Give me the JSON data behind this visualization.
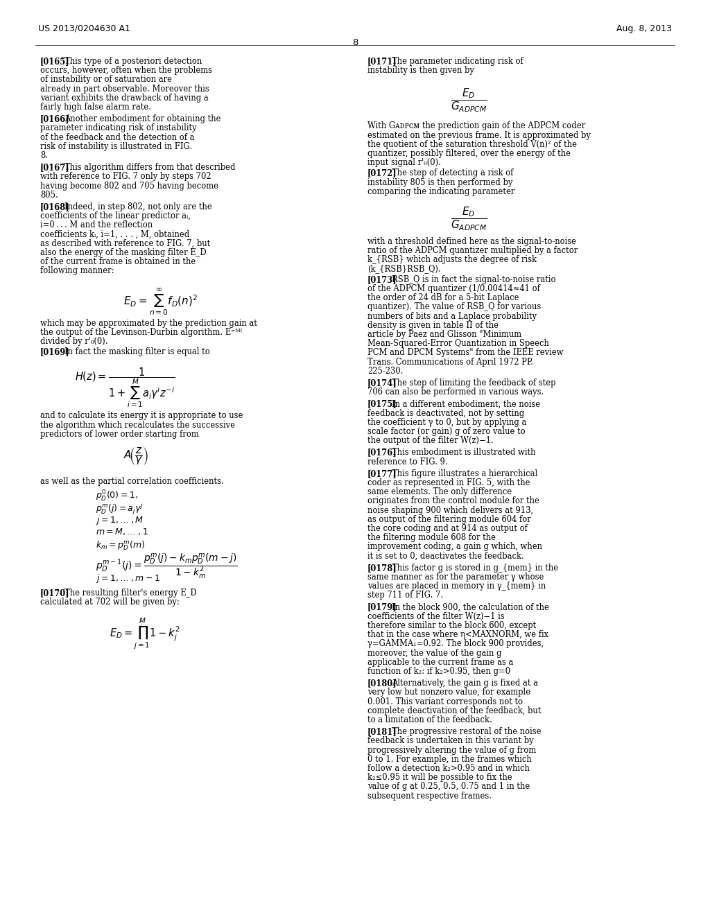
{
  "bg_color": "#ffffff",
  "header_left": "US 2013/0204630 A1",
  "header_right": "Aug. 8, 2013",
  "page_number": "8",
  "left_column": {
    "paragraphs": [
      {
        "tag": "[0165]",
        "text": "This type of a posteriori detection occurs, however, often when the problems of instability or of saturation are already in part observable. Moreover this variant exhibits the drawback of having a fairly high false alarm rate."
      },
      {
        "tag": "[0166]",
        "text": "Another embodiment for obtaining the parameter indicating risk of instability of the feedback and the detection of a risk of instability is illustrated in FIG. 8."
      },
      {
        "tag": "[0167]",
        "text": "This algorithm differs from that described with reference to FIG. 7 only by steps 702 having become 802 and 705 having become 805."
      },
      {
        "tag": "[0168]",
        "text": "Indeed, in step 802, not only are the coefficients of the linear predictor aᵢ, i=0 . . . M and the reflection coefficients kᵢ, i=1, . . . , M, obtained as described with reference to FIG. 7, but also the energy of the masking filter E_D of the current frame is obtained in the following manner:"
      },
      {
        "type": "formula",
        "id": "ED_sum",
        "latex": "$E_D = \\sum_{n=0}^{\\infty} f_D(n)^2$"
      },
      {
        "text": "which may be approximated by the prediction gain at the output of the Levinson-Durbin algorithm. E^{[M]} divided by r'₀(0)."
      },
      {
        "tag": "[0169]",
        "text": "In fact the masking filter is equal to"
      },
      {
        "type": "formula",
        "id": "Hz",
        "latex": "$H(z) = \\dfrac{1}{1 + \\sum_{i=1}^{M} a_i \\gamma^i z^{-i}}$"
      },
      {
        "text": "and to calculate its energy it is appropriate to use the algorithm which recalculates the successive predictors of lower order starting from"
      },
      {
        "type": "formula",
        "id": "Az",
        "latex": "$A\\left(\\dfrac{z}{\\gamma}\\right)$"
      },
      {
        "text": "as well as the partial correlation coefficients."
      },
      {
        "type": "equations_block",
        "lines": [
          "$p_D^0(0) = 1,$",
          "$p_D^m(j) = a_j \\gamma^j$",
          "$j = 1, \\ldots\\;, M$",
          "$m = M, \\ldots\\;, 1$",
          "$k_m = p_D^m(m)$",
          "$p_D^{m-1}(j) = \\dfrac{p_D^m(j) - k_m p_D^m(m-j)}{1 - k_m^2}$",
          "$j = 1, \\ldots\\;, m-1$"
        ]
      },
      {
        "tag": "[0170]",
        "text": "The resulting filter's energy E_D calculated at 702 will be given by:"
      },
      {
        "type": "formula",
        "id": "ED_prod",
        "latex": "$E_D = \\prod_{j=1}^{M} 1 - k_j^2$"
      }
    ]
  },
  "right_column": {
    "paragraphs": [
      {
        "tag": "[0171]",
        "text": "The parameter indicating risk of instability is then given by"
      },
      {
        "type": "formula",
        "id": "frac1",
        "latex": "$\\dfrac{E_D}{G_{ADPCM}}$"
      },
      {
        "text": "With G_{ADPCM} the prediction gain of the ADPCM coder estimated on the previous frame. It is approximated by the quotient of the saturation threshold V(n)^2 of the quantizer, possibly filtered, over the energy of the input signal r'₀(0)."
      },
      {
        "tag": "[0172]",
        "text": "The step of detecting a risk of instability 805 is then performed by comparing the indicating parameter"
      },
      {
        "type": "formula",
        "id": "frac2",
        "latex": "$\\dfrac{E_D}{G_{ADPCM}}$"
      },
      {
        "text": "with a threshold defined here as the signal-to-noise ratio of the ADPCM quantizer multiplied by a factor k_{RSB} which adjusts the degree of risk (k_{RSB}RSB_Q)."
      },
      {
        "tag": "[0173]",
        "text": "RSB_Q is in fact the signal-to-noise ratio of the ADPCM quantizer (1/0.00414≈41 of the order of 24 dB for a 5-bit Laplace quantizer). The value of RSB_Q for various numbers of bits and a Laplace probability density is given in table II of the article by Paez and Glisson \"Minimum Mean-Squared-Error Quantization in Speech PCM and DPCM Systems\" from the IEEE review Trans. Communications of April 1972 PP. 225-230."
      },
      {
        "tag": "[0174]",
        "text": "The step of limiting the feedback of step 706 can also be performed in various ways."
      },
      {
        "tag": "[0175]",
        "text": "In a different embodiment, the noise feedback is deactivated, not by setting the coefficient γ to 0, but by applying a scale factor (or gain) g of zero value to the output of the filter W(z)−1."
      },
      {
        "tag": "[0176]",
        "text": "This embodiment is illustrated with reference to FIG. 9."
      },
      {
        "tag": "[0177]",
        "text": "This figure illustrates a hierarchical coder as represented in FIG. 5, with the same elements. The only difference originates from the control module for the noise shaping 900 which delivers at 913, as output of the filtering module 604 for the core coding and at 914 as output of the filtering module 608 for the improvement coding, a gain g which, when it is set to 0, deactivates the feedback."
      },
      {
        "tag": "[0178]",
        "text": "This factor g is stored in g_{mem} in the same manner as for the parameter γ whose values are placed in memory in γ_{mem} in step 711 of FIG. 7."
      },
      {
        "tag": "[0179]",
        "text": "In the block 900, the calculation of the coefficients of the filter W(z)−1 is therefore similar to the block 600, except that in the case where η<MAXNORM, we fix γ=GAMMA_1=0.92. The block 900 provides, moreover, the value of the gain g applicable to the current frame as a function of k_2: if k_2>0.95, then g=0"
      },
      {
        "tag": "[0180]",
        "text": "Alternatively, the gain g is fixed at a very low but nonzero value, for example 0.001. This variant corresponds not to complete deactivation of the feedback, but to a limitation of the feedback."
      },
      {
        "tag": "[0181]",
        "text": "The progressive restoral of the noise feedback is undertaken in this variant by progressively altering the value of g from 0 to 1. For example, in the frames which follow a detection k_2>0.95 and in which k_2≤0.95 it will be possible to fix the value of g at 0.25, 0.5, 0.75 and 1 in the subsequent respective frames."
      }
    ]
  }
}
